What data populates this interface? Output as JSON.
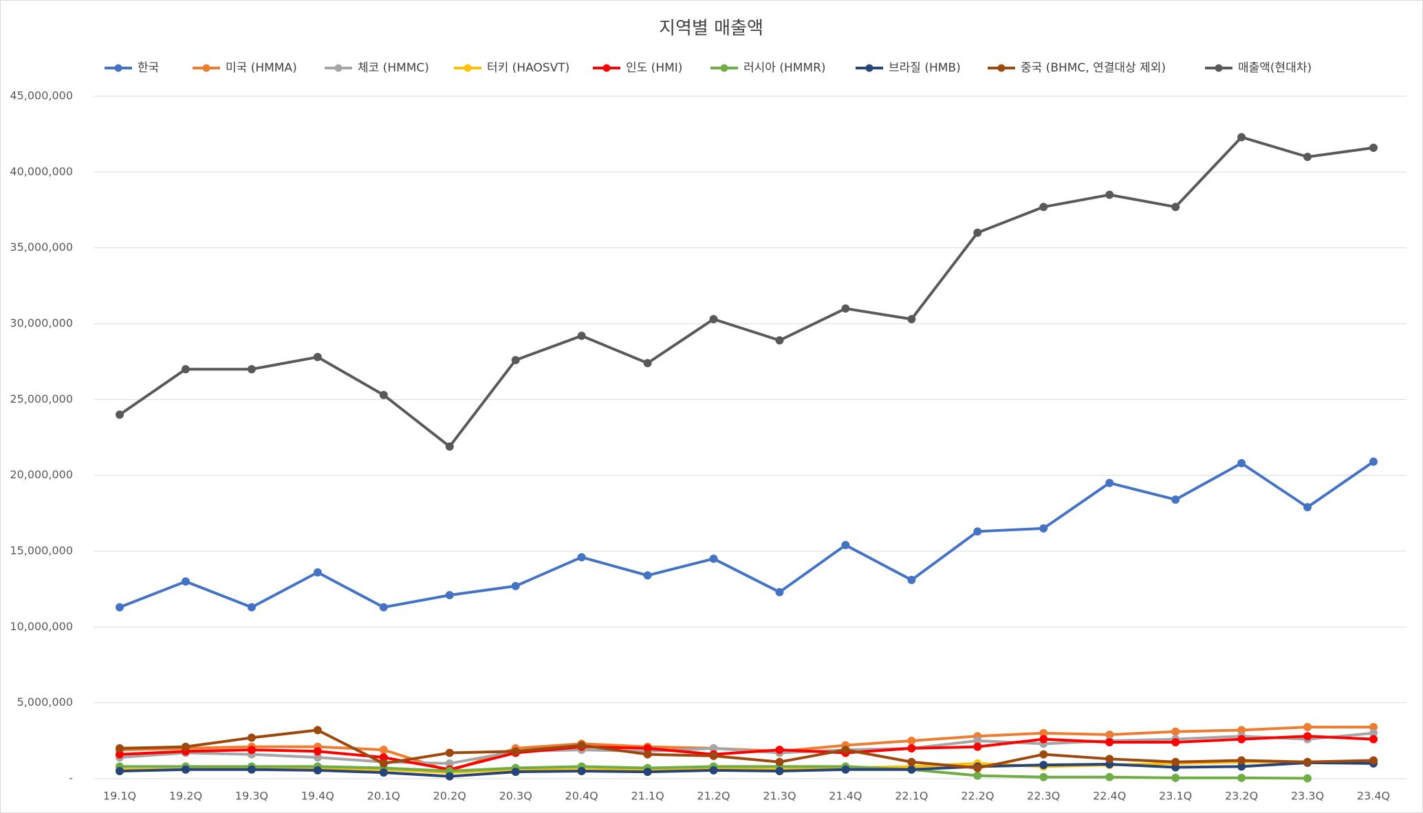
{
  "chart_data": {
    "type": "line",
    "title": "지역별 매출액",
    "categories": [
      "19.1Q",
      "19.2Q",
      "19.3Q",
      "19.4Q",
      "20.1Q",
      "20.2Q",
      "20.3Q",
      "20.4Q",
      "21.1Q",
      "21.2Q",
      "21.3Q",
      "21.4Q",
      "22.1Q",
      "22.2Q",
      "22.3Q",
      "22.4Q",
      "23.1Q",
      "23.2Q",
      "23.3Q",
      "23.4Q"
    ],
    "series": [
      {
        "name": "한국",
        "color": "#4472c4",
        "values": [
          11300000,
          13000000,
          11300000,
          13600000,
          11300000,
          12100000,
          12700000,
          14600000,
          13400000,
          14500000,
          12300000,
          15400000,
          13100000,
          16300000,
          16500000,
          19500000,
          18400000,
          20800000,
          17900000,
          20900000
        ]
      },
      {
        "name": "미국 (HMMA)",
        "color": "#ed7d31",
        "values": [
          1900000,
          2000000,
          2100000,
          2100000,
          1900000,
          500000,
          2000000,
          2300000,
          2100000,
          2000000,
          1800000,
          2200000,
          2500000,
          2800000,
          3000000,
          2900000,
          3100000,
          3200000,
          3400000,
          3400000
        ]
      },
      {
        "name": "체코 (HMMC)",
        "color": "#a5a5a5",
        "values": [
          1400000,
          1700000,
          1600000,
          1400000,
          1100000,
          1000000,
          1800000,
          1900000,
          1800000,
          2000000,
          1700000,
          1900000,
          2000000,
          2500000,
          2300000,
          2500000,
          2600000,
          2800000,
          2600000,
          3000000
        ]
      },
      {
        "name": "터키 (HAOSVT)",
        "color": "#ffc000",
        "values": [
          600000,
          600000,
          700000,
          700000,
          600000,
          400000,
          600000,
          700000,
          600000,
          700000,
          600000,
          700000,
          800000,
          1000000,
          800000,
          900000,
          1000000,
          1100000,
          1100000,
          1100000
        ]
      },
      {
        "name": "인도 (HMI)",
        "color": "#ff0000",
        "values": [
          1600000,
          1800000,
          1900000,
          1800000,
          1400000,
          600000,
          1700000,
          2100000,
          2000000,
          1600000,
          1900000,
          1700000,
          2000000,
          2100000,
          2600000,
          2400000,
          2400000,
          2600000,
          2800000,
          2600000
        ]
      },
      {
        "name": "러시아 (HMMR)",
        "color": "#70ad47",
        "values": [
          800000,
          800000,
          800000,
          800000,
          700000,
          500000,
          700000,
          800000,
          700000,
          800000,
          800000,
          800000,
          600000,
          200000,
          100000,
          100000,
          50000,
          50000,
          20000,
          null
        ]
      },
      {
        "name": "브라질 (HMB)",
        "color": "#264478",
        "values": [
          500000,
          600000,
          600000,
          550000,
          400000,
          150000,
          450000,
          500000,
          450000,
          550000,
          500000,
          600000,
          600000,
          800000,
          900000,
          950000,
          750000,
          800000,
          1050000,
          1000000
        ]
      },
      {
        "name": "중국 (BHMC, 연결대상 제외)",
        "color": "#9e480e",
        "values": [
          2000000,
          2100000,
          2700000,
          3200000,
          1000000,
          1700000,
          1800000,
          2200000,
          1600000,
          1500000,
          1100000,
          1900000,
          1100000,
          700000,
          1600000,
          1300000,
          1100000,
          1200000,
          1100000,
          1200000
        ]
      },
      {
        "name": "매출액(현대차)",
        "color": "#595959",
        "values": [
          24000000,
          27000000,
          27000000,
          27800000,
          25300000,
          21900000,
          27600000,
          29200000,
          27400000,
          30300000,
          28900000,
          31000000,
          30300000,
          36000000,
          37700000,
          38500000,
          37700000,
          42300000,
          41000000,
          41600000
        ]
      }
    ],
    "ylim": [
      0,
      45000000
    ],
    "yticks": [
      {
        "value": 0,
        "label": "-"
      },
      {
        "value": 5000000,
        "label": "5,000,000"
      },
      {
        "value": 10000000,
        "label": "10,000,000"
      },
      {
        "value": 15000000,
        "label": "15,000,000"
      },
      {
        "value": 20000000,
        "label": "20,000,000"
      },
      {
        "value": 25000000,
        "label": "25,000,000"
      },
      {
        "value": 30000000,
        "label": "30,000,000"
      },
      {
        "value": 35000000,
        "label": "35,000,000"
      },
      {
        "value": 40000000,
        "label": "40,000,000"
      },
      {
        "value": 45000000,
        "label": "45,000,000"
      }
    ],
    "grid": true,
    "legend": "top"
  }
}
